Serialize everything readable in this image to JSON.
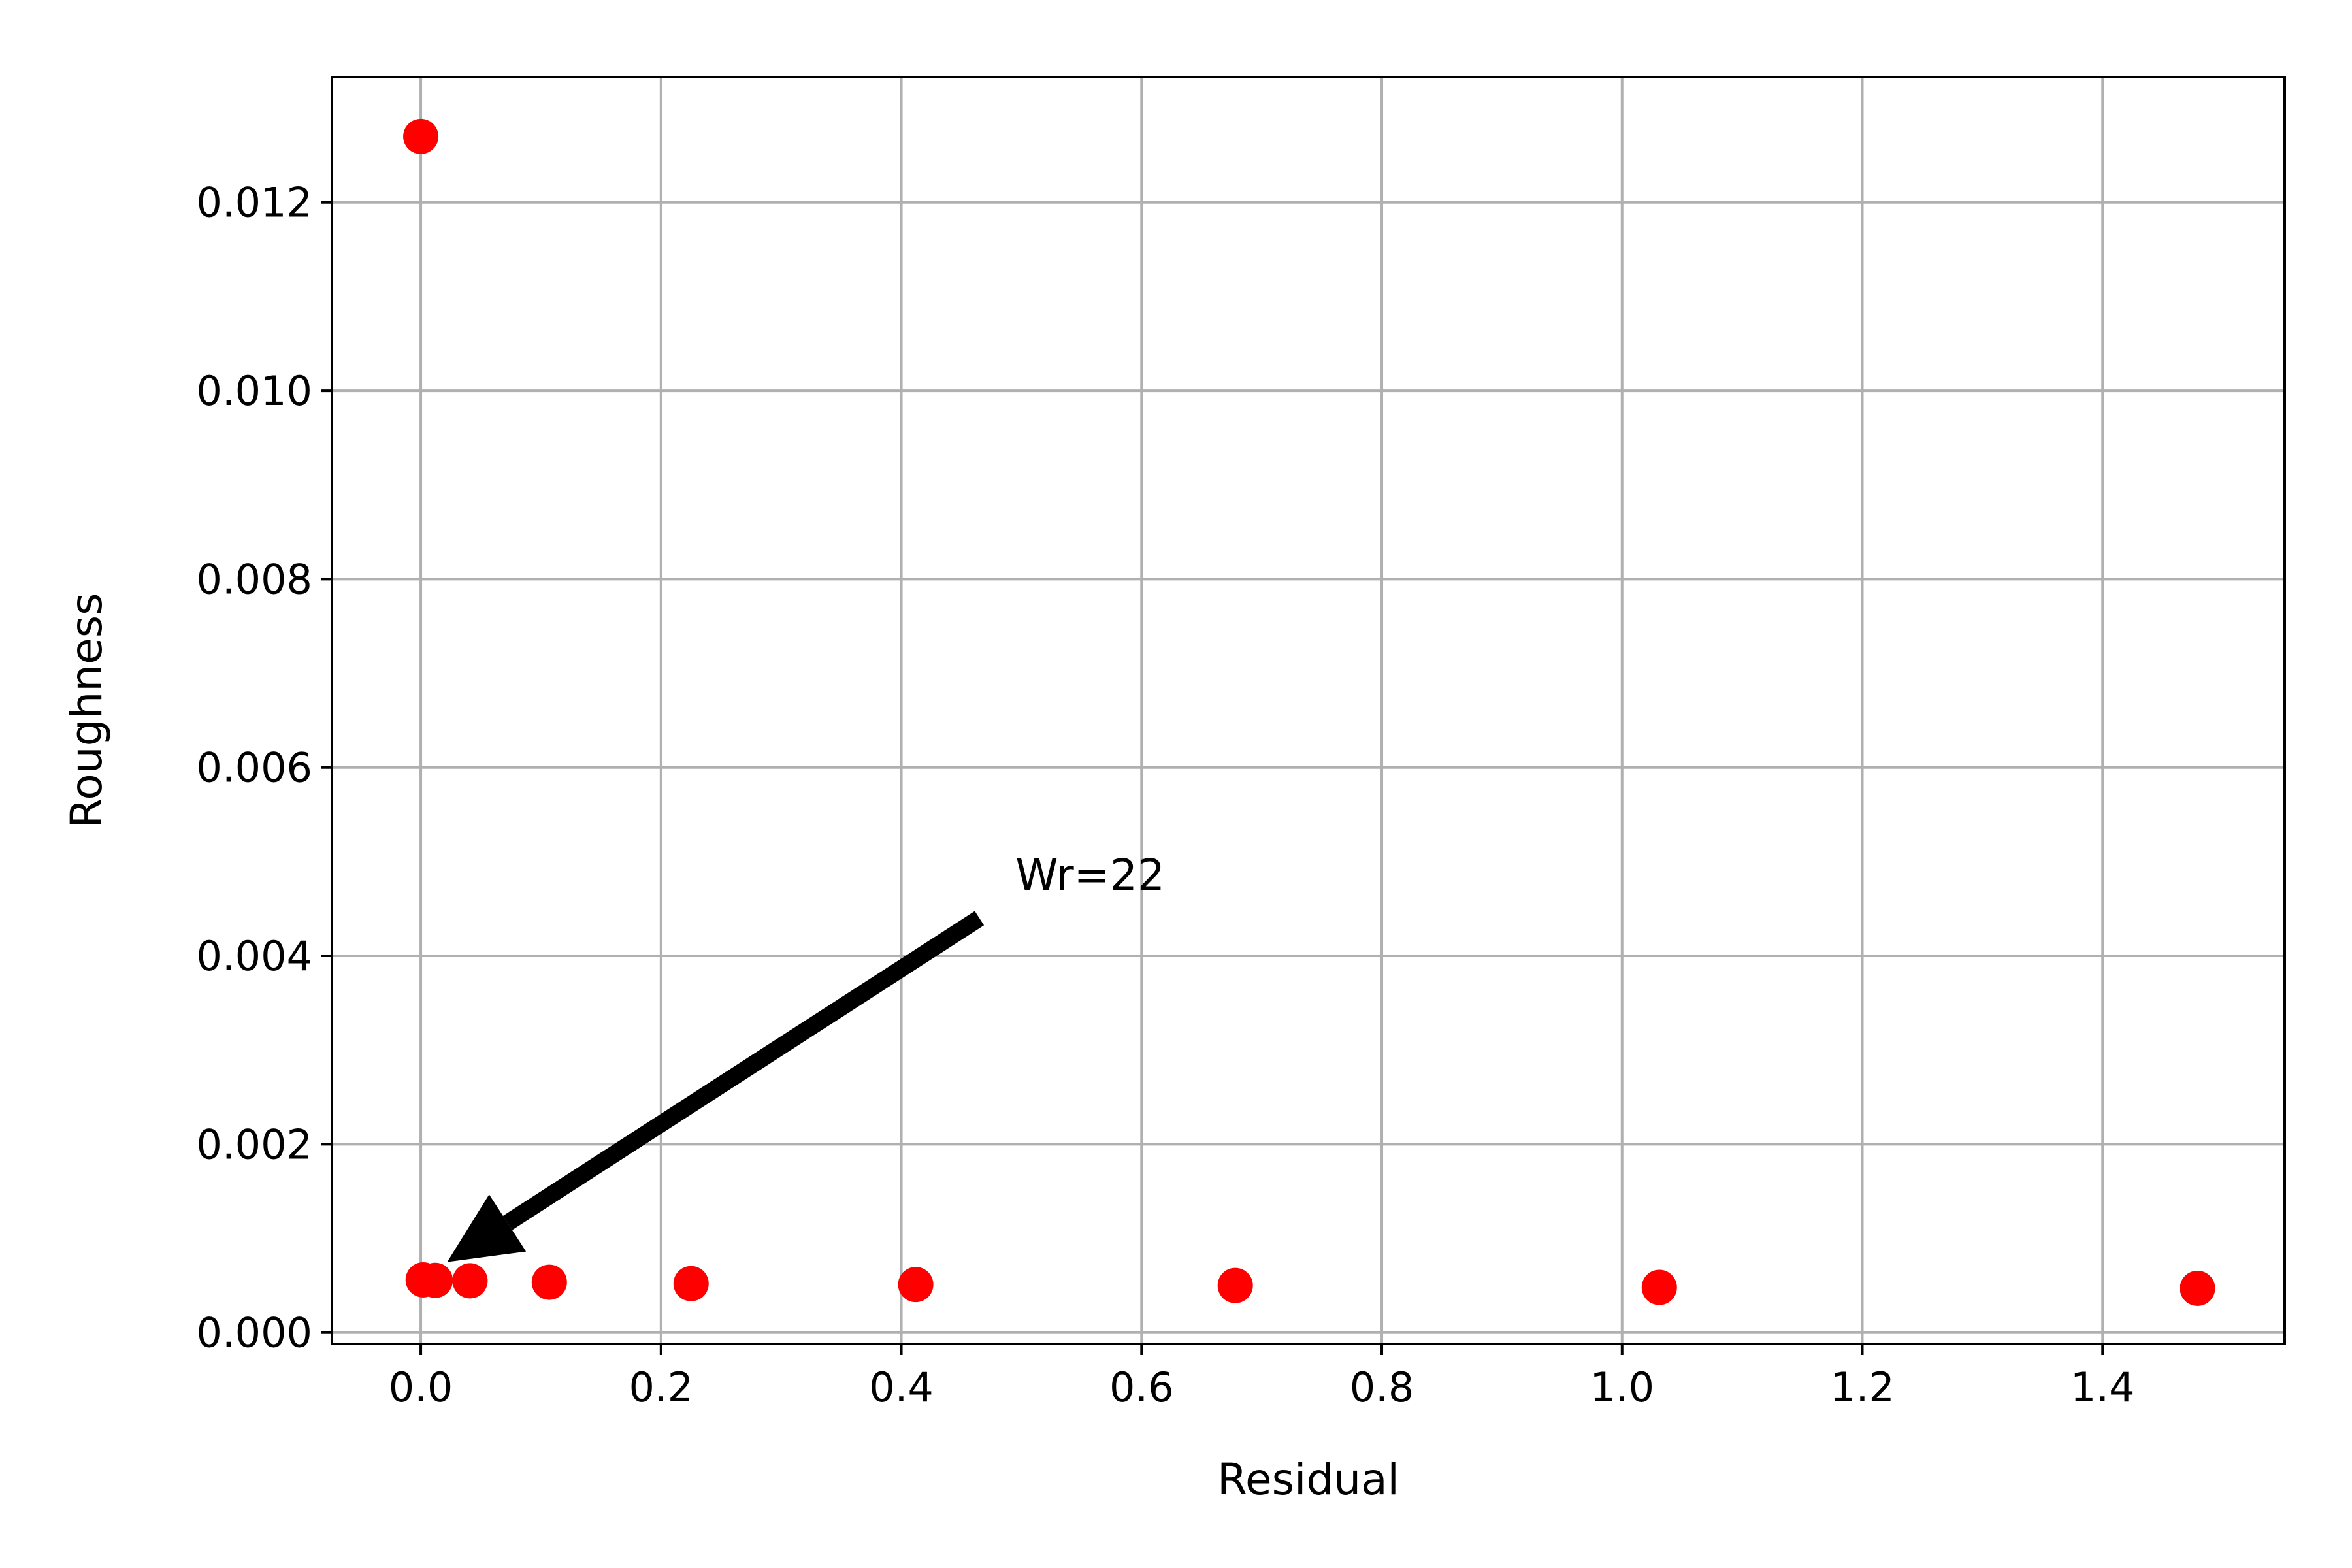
{
  "chart_data": {
    "type": "scatter",
    "title": "",
    "xlabel": "Residual",
    "ylabel": "Roughness",
    "xlim": [
      -0.074,
      1.5516
    ],
    "ylim": [
      -0.00012,
      0.01333
    ],
    "xticks": [
      0.0,
      0.2,
      0.4,
      0.6,
      0.8,
      1.0,
      1.2,
      1.4
    ],
    "xtick_labels": [
      "0.0",
      "0.2",
      "0.4",
      "0.6",
      "0.8",
      "1.0",
      "1.2",
      "1.4"
    ],
    "yticks": [
      0.0,
      0.002,
      0.004,
      0.006,
      0.008,
      0.01,
      0.012
    ],
    "ytick_labels": [
      "0.000",
      "0.002",
      "0.004",
      "0.006",
      "0.008",
      "0.010",
      "0.012"
    ],
    "grid": true,
    "marker_color": "#ff0000",
    "points": [
      {
        "x": 0.0,
        "y": 0.0127
      },
      {
        "x": 0.002,
        "y": 0.00056
      },
      {
        "x": 0.012,
        "y": 0.000555
      },
      {
        "x": 0.041,
        "y": 0.00055
      },
      {
        "x": 0.107,
        "y": 0.000535
      },
      {
        "x": 0.225,
        "y": 0.00052
      },
      {
        "x": 0.412,
        "y": 0.00051
      },
      {
        "x": 0.678,
        "y": 0.0005
      },
      {
        "x": 1.031,
        "y": 0.00048
      },
      {
        "x": 1.479,
        "y": 0.00047
      }
    ],
    "annotation": {
      "text": "Wr=22",
      "text_x": 0.495,
      "text_y": 0.0047,
      "arrow_tail_x": 0.465,
      "arrow_tail_y": 0.0044,
      "arrow_head_x": 0.022,
      "arrow_head_y": 0.00075
    }
  }
}
